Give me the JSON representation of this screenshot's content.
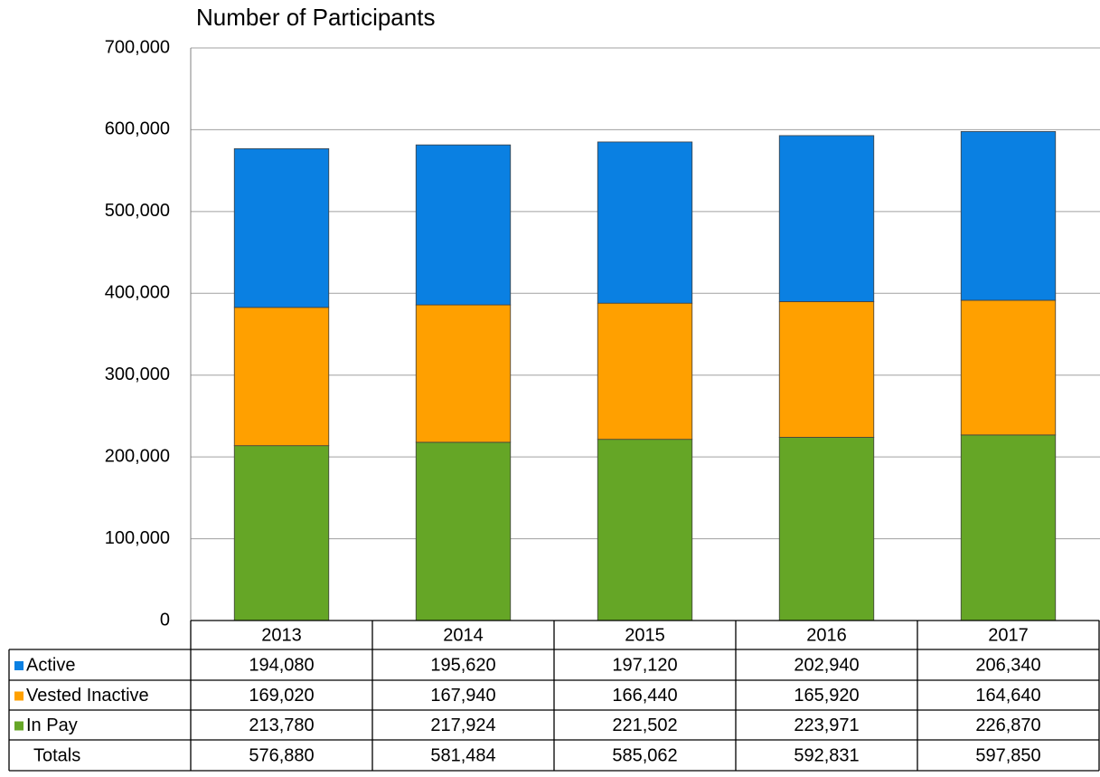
{
  "chart_data": {
    "type": "stacked_bar",
    "title": "Number of Participants",
    "categories": [
      "2013",
      "2014",
      "2015",
      "2016",
      "2017"
    ],
    "series": [
      {
        "name": "Active",
        "color": "#0a80e2",
        "values": [
          194080,
          195620,
          197120,
          202940,
          206340
        ],
        "value_labels": [
          "194,080",
          "195,620",
          "197,120",
          "202,940",
          "206,340"
        ]
      },
      {
        "name": "Vested Inactive",
        "color": "#ffa000",
        "values": [
          169020,
          167940,
          166440,
          165920,
          164640
        ],
        "value_labels": [
          "169,020",
          "167,940",
          "166,440",
          "165,920",
          "164,640"
        ]
      },
      {
        "name": "In Pay",
        "color": "#65a626",
        "values": [
          213780,
          217924,
          221502,
          223971,
          226870
        ],
        "value_labels": [
          "213,780",
          "217,924",
          "221,502",
          "223,971",
          "226,870"
        ]
      }
    ],
    "totals": {
      "name": "Totals",
      "values": [
        576880,
        581484,
        585062,
        592831,
        597850
      ],
      "value_labels": [
        "576,880",
        "581,484",
        "585,062",
        "592,831",
        "597,850"
      ]
    },
    "ylim": [
      0,
      700000
    ],
    "yticks": [
      0,
      {
        "value": 100000,
        "label": "100,000"
      },
      {
        "value": 200000,
        "label": "200,000"
      },
      {
        "value": 300000,
        "label": "300,000"
      },
      {
        "value": 400000,
        "label": "400,000"
      },
      {
        "value": 500000,
        "label": "500,000"
      },
      {
        "value": 600000,
        "label": "600,000"
      },
      {
        "value": 700000,
        "label": "700,000"
      }
    ],
    "grid": true
  }
}
